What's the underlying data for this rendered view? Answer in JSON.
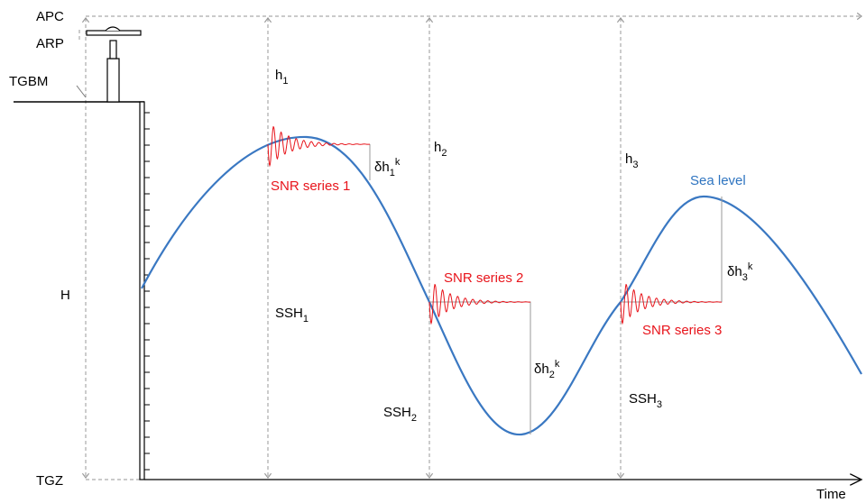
{
  "levels": {
    "apc": "APC",
    "arp": "ARP",
    "tgbm": "TGBM",
    "tgz": "TGZ",
    "h": "H"
  },
  "ranges": [
    {
      "base": "h",
      "sub": "1"
    },
    {
      "base": "h",
      "sub": "2"
    },
    {
      "base": "h",
      "sub": "3"
    }
  ],
  "ssh": [
    {
      "base": "SSH",
      "sub": "1"
    },
    {
      "base": "SSH",
      "sub": "2"
    },
    {
      "base": "SSH",
      "sub": "3"
    }
  ],
  "offsets": [
    {
      "base": "δh",
      "sub": "1",
      "sup": "k"
    },
    {
      "base": "δh",
      "sub": "2",
      "sup": "k"
    },
    {
      "base": "δh",
      "sub": "3",
      "sup": "k"
    }
  ],
  "snr_series": [
    "SNR series 1",
    "SNR series 2",
    "SNR series 3"
  ],
  "sea_level": "Sea level",
  "x_axis": "Time"
}
